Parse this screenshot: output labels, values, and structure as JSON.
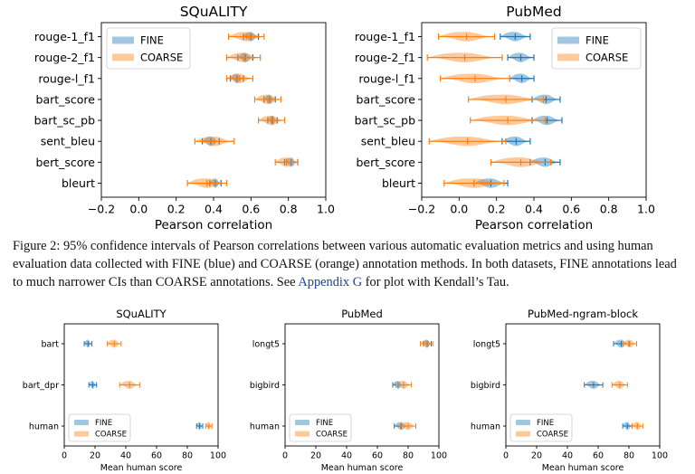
{
  "colors": {
    "fine": "#1f77b4",
    "coarse": "#ff7f0e",
    "link": "#1f3f9f"
  },
  "caption": {
    "part1": "Figure 2: 95% confidence intervals of Pearson correlations between various automatic evaluation metrics and using human evaluation data collected with ",
    "fine_word": "FINE",
    "part2": " (blue) and ",
    "coarse_word": "COARSE",
    "part3": " (orange) annotation methods. In both datasets, ",
    "fine_word2": "FINE",
    "part4": " annotations lead to much narrower CIs than ",
    "coarse_word2": "COARSE",
    "part5": " annotations. See ",
    "link": "Appendix G",
    "part6": " for plot with Kendall’s Tau."
  },
  "chart_data": [
    {
      "type": "violin",
      "title": "SQuALITY",
      "xlabel": "Pearson correlation",
      "xlim": [
        -0.2,
        1.0
      ],
      "xticks": [
        "−0.2",
        "0.0",
        "0.2",
        "0.4",
        "0.6",
        "0.8",
        "1.0"
      ],
      "categories": [
        "rouge-1_f1",
        "rouge-2_f1",
        "rouge-l_f1",
        "bart_score",
        "bart_sc_pb",
        "sent_bleu",
        "bert_score",
        "bleurt"
      ],
      "legend": "upper-left",
      "series": [
        {
          "name": "FINE",
          "intervals": [
            [
              0.56,
              0.64
            ],
            [
              0.53,
              0.61
            ],
            [
              0.49,
              0.56
            ],
            [
              0.67,
              0.73
            ],
            [
              0.69,
              0.74
            ],
            [
              0.34,
              0.43
            ],
            [
              0.78,
              0.85
            ],
            [
              0.38,
              0.44
            ]
          ]
        },
        {
          "name": "COARSE",
          "intervals": [
            [
              0.48,
              0.67
            ],
            [
              0.47,
              0.65
            ],
            [
              0.47,
              0.61
            ],
            [
              0.62,
              0.76
            ],
            [
              0.64,
              0.78
            ],
            [
              0.3,
              0.51
            ],
            [
              0.73,
              0.85
            ],
            [
              0.26,
              0.47
            ]
          ]
        }
      ]
    },
    {
      "type": "violin",
      "title": "PubMed",
      "xlabel": "Pearson correlation",
      "xlim": [
        -0.2,
        1.0
      ],
      "xticks": [
        "−0.2",
        "0.0",
        "0.2",
        "0.4",
        "0.6",
        "0.8",
        "1.0"
      ],
      "categories": [
        "rouge-1_f1",
        "rouge-2_f1",
        "rouge-l_f1",
        "bart_score",
        "bart_sc_pb",
        "sent_bleu",
        "bert_score",
        "bleurt"
      ],
      "legend": "upper-right",
      "series": [
        {
          "name": "FINE",
          "intervals": [
            [
              0.22,
              0.38
            ],
            [
              0.26,
              0.4
            ],
            [
              0.27,
              0.4
            ],
            [
              0.39,
              0.54
            ],
            [
              0.39,
              0.55
            ],
            [
              0.23,
              0.38
            ],
            [
              0.38,
              0.54
            ],
            [
              0.08,
              0.26
            ]
          ]
        },
        {
          "name": "COARSE",
          "intervals": [
            [
              -0.11,
              0.19
            ],
            [
              -0.17,
              0.23
            ],
            [
              -0.1,
              0.27
            ],
            [
              0.05,
              0.45
            ],
            [
              0.06,
              0.46
            ],
            [
              -0.16,
              0.25
            ],
            [
              0.17,
              0.49
            ],
            [
              -0.08,
              0.24
            ]
          ]
        }
      ]
    },
    {
      "type": "violin",
      "title": "SQuALITY",
      "xlabel": "Mean human score",
      "xlim": [
        0,
        100
      ],
      "xticks": [
        "0",
        "20",
        "40",
        "60",
        "80",
        "100"
      ],
      "categories": [
        "bart",
        "bart_dpr",
        "human"
      ],
      "legend": "lower-left",
      "series": [
        {
          "name": "FINE",
          "intervals": [
            [
              13,
              18
            ],
            [
              16,
              21
            ],
            [
              86,
              90
            ]
          ]
        },
        {
          "name": "COARSE",
          "intervals": [
            [
              28,
              37
            ],
            [
              36,
              49
            ],
            [
              92,
              96
            ]
          ]
        }
      ]
    },
    {
      "type": "violin",
      "title": "PubMed",
      "xlabel": "Mean human score",
      "xlim": [
        0,
        100
      ],
      "xticks": [
        "0",
        "20",
        "40",
        "60",
        "80",
        "100"
      ],
      "categories": [
        "longt5",
        "bigbird",
        "human"
      ],
      "legend": "lower-left",
      "series": [
        {
          "name": "FINE",
          "intervals": [
            [
              90,
              95
            ],
            [
              70,
              77
            ],
            [
              71,
              80
            ]
          ]
        },
        {
          "name": "COARSE",
          "intervals": [
            [
              88,
              96
            ],
            [
              72,
              82
            ],
            [
              75,
              85
            ]
          ]
        }
      ]
    },
    {
      "type": "violin",
      "title": "PubMed-ngram-block",
      "xlabel": "Mean human score",
      "xlim": [
        0,
        100
      ],
      "xticks": [
        "0",
        "20",
        "40",
        "60",
        "80",
        "100"
      ],
      "categories": [
        "longt5",
        "bigbird",
        "human"
      ],
      "legend": "lower-left",
      "series": [
        {
          "name": "FINE",
          "intervals": [
            [
              70,
              80
            ],
            [
              51,
              63
            ],
            [
              76,
              82
            ]
          ]
        },
        {
          "name": "COARSE",
          "intervals": [
            [
              76,
              85
            ],
            [
              69,
              79
            ],
            [
              82,
              89
            ]
          ]
        }
      ]
    }
  ]
}
